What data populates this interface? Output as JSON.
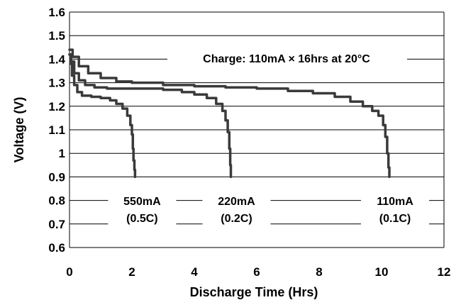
{
  "chart_data": {
    "type": "line",
    "xlabel": "Discharge Time (Hrs)",
    "ylabel": "Voltage (V)",
    "xlim": [
      0,
      12
    ],
    "ylim": [
      0.6,
      1.6
    ],
    "xticks": [
      "0",
      "2",
      "4",
      "6",
      "8",
      "10",
      "12"
    ],
    "yticks": [
      "0.6",
      "0.7",
      "0.8",
      "0.9",
      "1",
      "1.1",
      "1.2",
      "1.3",
      "1.4",
      "1.5",
      "1.6"
    ],
    "grid": "horizontal",
    "annotation": "Charge: 110mA × 16hrs at 20°C",
    "series": [
      {
        "name": "550mA (0.5C)",
        "label_lines": [
          "550mA",
          "(0.5C)"
        ],
        "x": [
          0,
          0.03,
          0.08,
          0.15,
          0.25,
          0.4,
          0.7,
          1.0,
          1.3,
          1.5,
          1.7,
          1.85,
          1.95,
          2.0,
          2.03,
          2.05,
          2.08,
          2.1
        ],
        "y": [
          1.42,
          1.38,
          1.33,
          1.29,
          1.26,
          1.245,
          1.24,
          1.235,
          1.225,
          1.21,
          1.19,
          1.16,
          1.12,
          1.08,
          1.02,
          0.97,
          0.93,
          0.9
        ]
      },
      {
        "name": "220mA (0.2C)",
        "label_lines": [
          "220mA",
          "(0.2C)"
        ],
        "x": [
          0,
          0.05,
          0.15,
          0.3,
          0.5,
          0.8,
          1.2,
          2.0,
          3.0,
          3.6,
          4.0,
          4.4,
          4.7,
          4.9,
          5.0,
          5.07,
          5.12,
          5.15,
          5.17
        ],
        "y": [
          1.42,
          1.39,
          1.34,
          1.31,
          1.29,
          1.28,
          1.275,
          1.275,
          1.27,
          1.26,
          1.25,
          1.235,
          1.21,
          1.18,
          1.14,
          1.09,
          1.02,
          0.95,
          0.9
        ]
      },
      {
        "name": "110mA (0.1C)",
        "label_lines": [
          "110mA",
          "(0.1C)"
        ],
        "x": [
          0,
          0.1,
          0.3,
          0.6,
          1.0,
          1.5,
          2.0,
          3.0,
          4.0,
          5.0,
          6.0,
          7.0,
          7.8,
          8.5,
          9.0,
          9.4,
          9.7,
          9.9,
          10.05,
          10.12,
          10.18,
          10.22,
          10.25
        ],
        "y": [
          1.44,
          1.41,
          1.37,
          1.34,
          1.32,
          1.305,
          1.3,
          1.29,
          1.285,
          1.28,
          1.275,
          1.265,
          1.255,
          1.24,
          1.22,
          1.2,
          1.18,
          1.16,
          1.12,
          1.07,
          1.0,
          0.94,
          0.9
        ]
      }
    ]
  }
}
